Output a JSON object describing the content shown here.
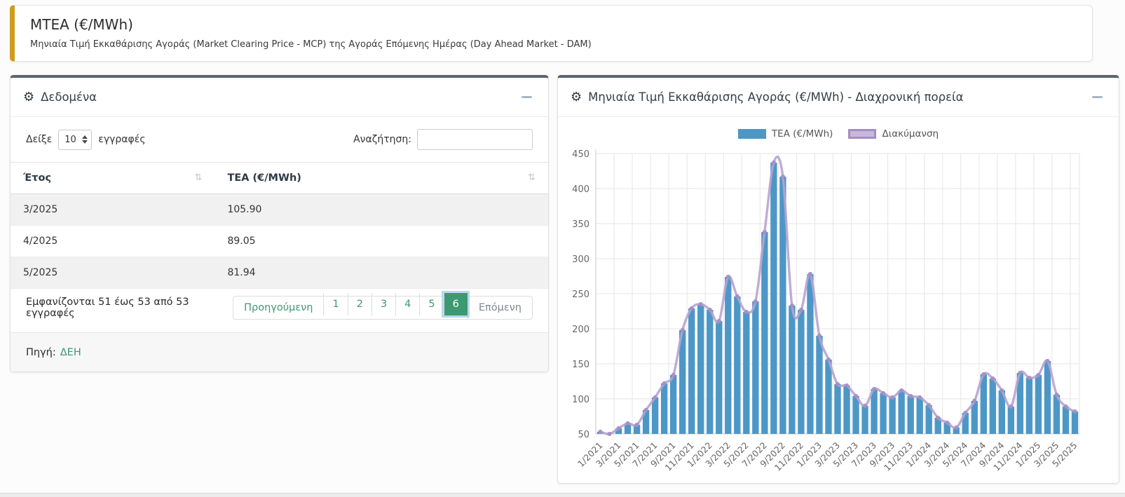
{
  "page_header": {
    "title": "MTEA (€/MWh)",
    "subtitle": "Μηνιαία Τιμή Εκκαθάρισης Αγοράς (Market Clearing Price - MCP) της Αγοράς Επόμενης Ημέρας (Day Ahead Market - DAM)"
  },
  "icons": {
    "gear": "⚙",
    "sort": "⇅"
  },
  "data_panel": {
    "title": "Δεδομένα",
    "length_label_before": "Δείξε",
    "length_value": "10",
    "length_label_after": "εγγραφές",
    "search_label": "Αναζήτηση:",
    "search_value": "",
    "table": {
      "columns": [
        "Έτος",
        "TEA (€/MWh)"
      ],
      "rows": [
        [
          "3/2025",
          "105.90"
        ],
        [
          "4/2025",
          "89.05"
        ],
        [
          "5/2025",
          "81.94"
        ]
      ]
    },
    "info": "Εμφανίζονται 51 έως 53 από 53 εγγραφές",
    "pagination": {
      "prev": "Προηγούμενη",
      "pages": [
        "1",
        "2",
        "3",
        "4",
        "5",
        "6"
      ],
      "active": "6",
      "next": "Επόμενη"
    },
    "source_label": "Πηγή:",
    "source_link": "ΔΕΗ"
  },
  "chart_panel": {
    "title": "Μηνιαία Τιμή Εκκαθάρισης Αγοράς (€/MWh) - Διαχρονική πορεία"
  },
  "chart_data": {
    "type": "bar",
    "title": "Μηνιαία Τιμή Εκκαθάρισης Αγοράς (€/MWh) - Διαχρονική πορεία",
    "categories": [
      "1/2021",
      "2/2021",
      "3/2021",
      "4/2021",
      "5/2021",
      "6/2021",
      "7/2021",
      "8/2021",
      "9/2021",
      "10/2021",
      "11/2021",
      "12/2021",
      "1/2022",
      "2/2022",
      "3/2022",
      "4/2022",
      "5/2022",
      "6/2022",
      "7/2022",
      "8/2022",
      "9/2022",
      "10/2022",
      "11/2022",
      "12/2022",
      "1/2023",
      "2/2023",
      "3/2023",
      "4/2023",
      "5/2023",
      "6/2023",
      "7/2023",
      "8/2023",
      "9/2023",
      "10/2023",
      "11/2023",
      "12/2023",
      "1/2024",
      "2/2024",
      "3/2024",
      "4/2024",
      "5/2024",
      "6/2024",
      "7/2024",
      "8/2024",
      "9/2024",
      "10/2024",
      "11/2024",
      "12/2024",
      "1/2025",
      "2/2025",
      "3/2025",
      "4/2025",
      "5/2025"
    ],
    "series": [
      {
        "name": "TEA (€/MWh)",
        "type": "bar",
        "color": "#4d97c7",
        "values": [
          53,
          50,
          58,
          65,
          63,
          84,
          102,
          122,
          134,
          198,
          229,
          235,
          227,
          211,
          274,
          246,
          224,
          239,
          338,
          437,
          417,
          233,
          227,
          278,
          190,
          156,
          121,
          119,
          104,
          90,
          114,
          108,
          102,
          112,
          104,
          102,
          91,
          73,
          66,
          59,
          80,
          97,
          135,
          129,
          112,
          89,
          137,
          130,
          134,
          154,
          105.9,
          89.05,
          81.94
        ]
      },
      {
        "name": "Διακύμανση",
        "type": "line",
        "color": "#b7a3d0",
        "point_color": "#a48ec2",
        "values": [
          53,
          50,
          58,
          65,
          63,
          84,
          102,
          122,
          134,
          198,
          229,
          235,
          227,
          211,
          274,
          246,
          224,
          239,
          338,
          437,
          417,
          233,
          227,
          278,
          190,
          156,
          121,
          119,
          104,
          90,
          114,
          108,
          102,
          112,
          104,
          102,
          91,
          73,
          66,
          59,
          80,
          97,
          135,
          129,
          112,
          89,
          137,
          130,
          134,
          154,
          105.9,
          89.05,
          81.94
        ]
      }
    ],
    "ylim": [
      50,
      450
    ],
    "yticks": [
      50,
      100,
      150,
      200,
      250,
      300,
      350,
      400,
      450
    ],
    "tick_step": 2,
    "xlabel": "",
    "ylabel": "",
    "grid": true,
    "legend_position": "top"
  },
  "colors": {
    "accent_gold": "#ce9d1c",
    "panel_top_border": "#5a6672",
    "green": "#3d9970",
    "bar_blue": "#4d97c7",
    "line_purple": "#b7a3d0",
    "grid": "#e6e6e6",
    "axis": "#c9c9c9",
    "tick_text": "#666666"
  }
}
